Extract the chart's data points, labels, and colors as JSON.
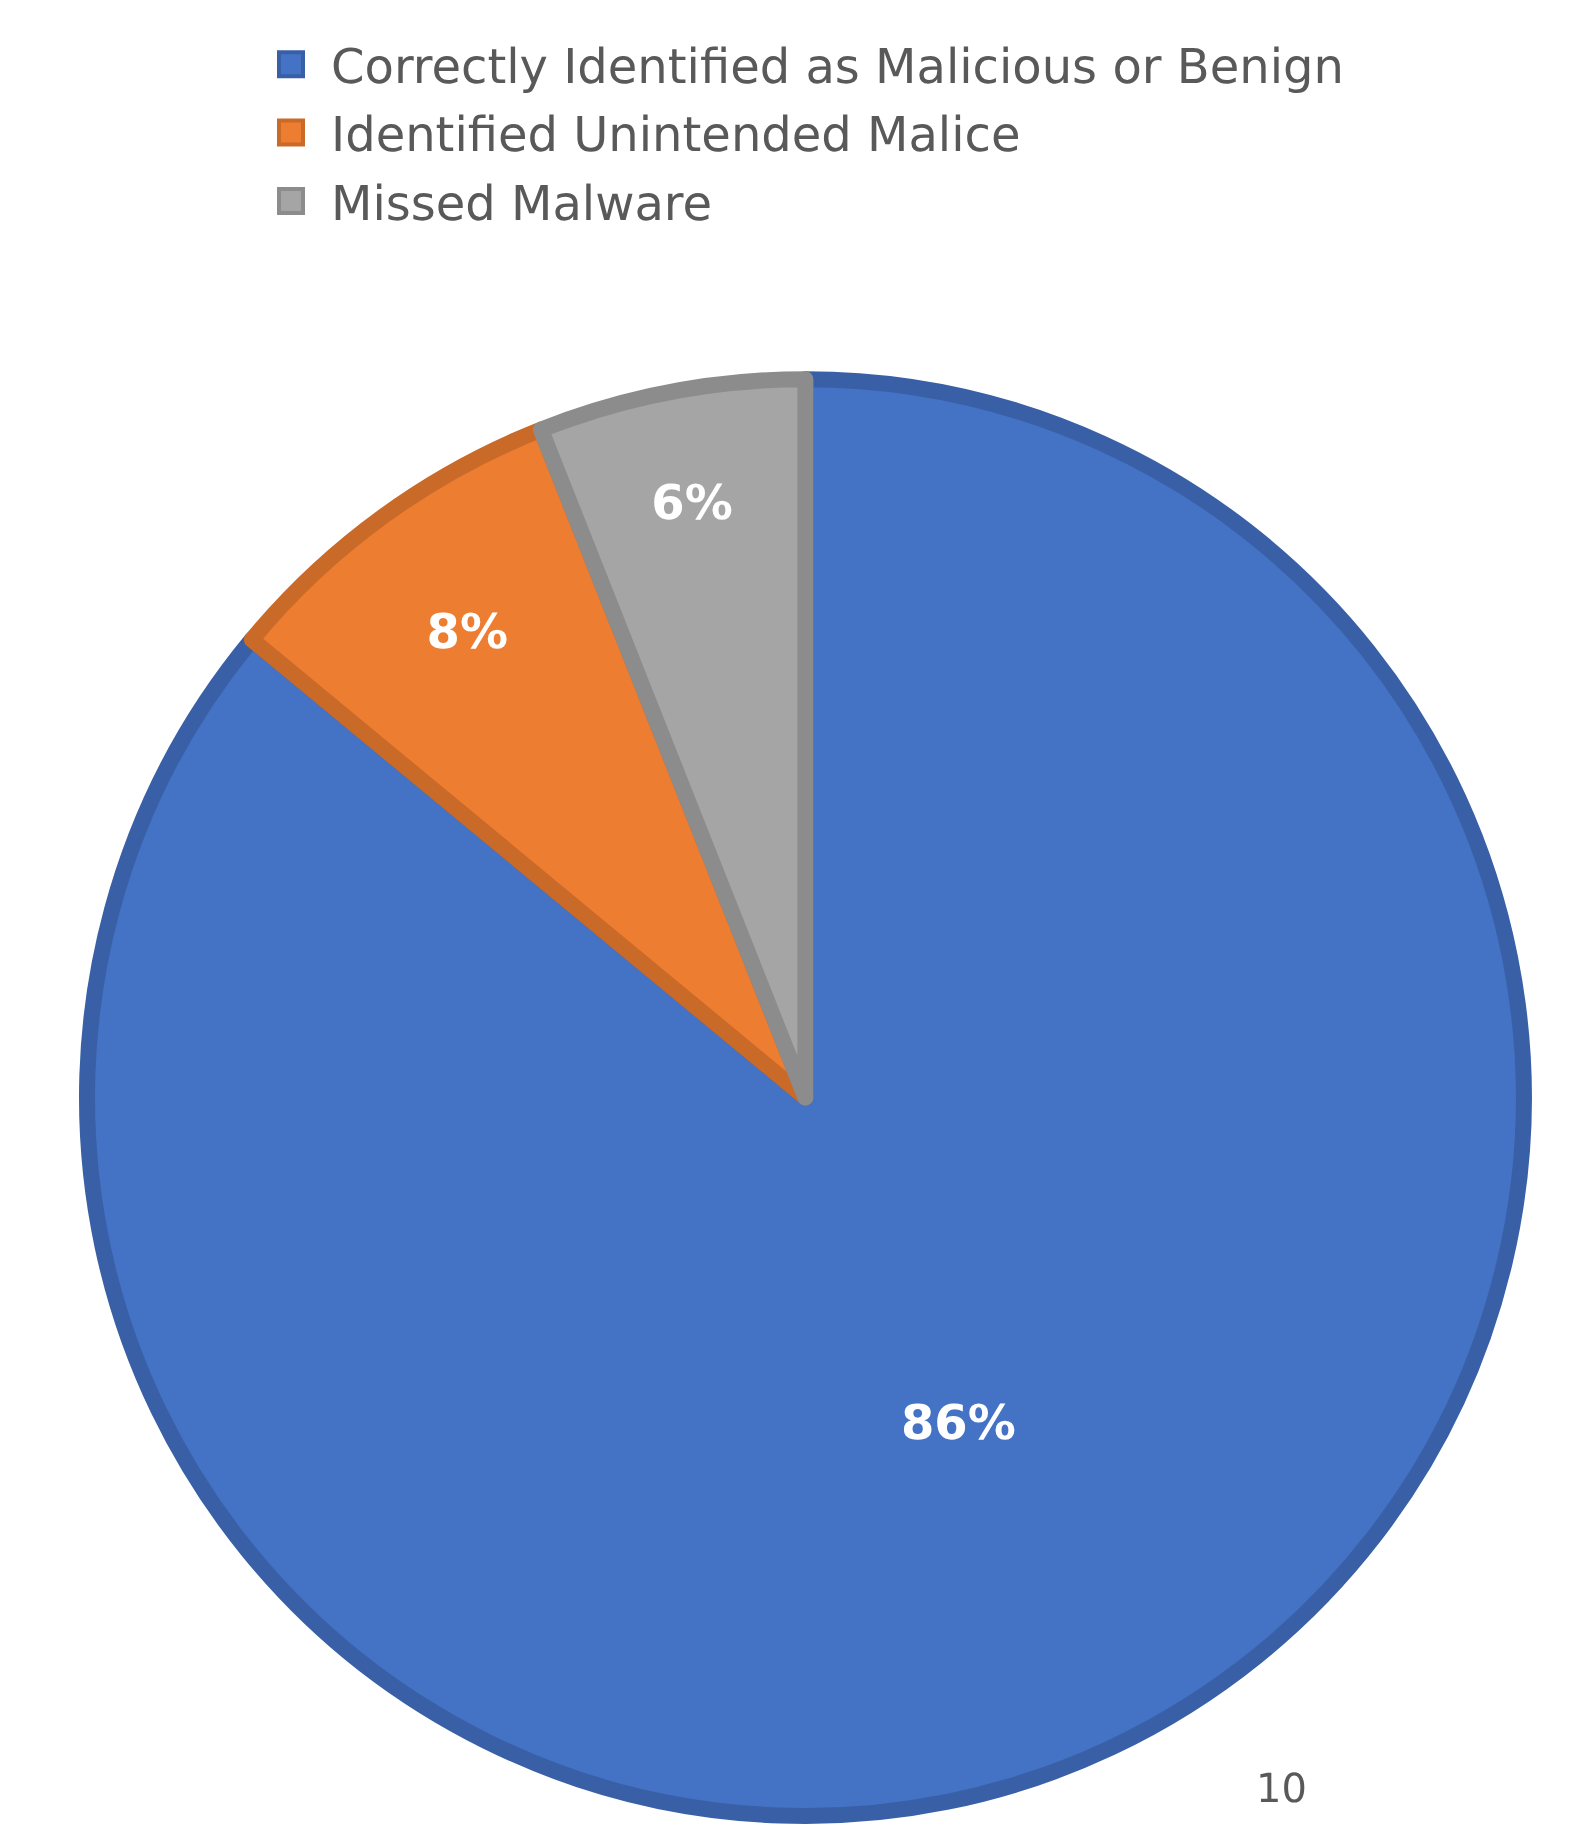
{
  "chart_data": {
    "type": "pie",
    "categories": [
      "Correctly Identified as Malicious or Benign",
      "Identified Unintended Malice",
      "Missed Malware"
    ],
    "values": [
      86,
      8,
      6
    ],
    "colors": [
      "#4472c4",
      "#ed7d31",
      "#a5a5a5"
    ],
    "value_labels": [
      "86%",
      "8%",
      "6%"
    ],
    "legend": "top",
    "annotations": [
      "10"
    ]
  }
}
